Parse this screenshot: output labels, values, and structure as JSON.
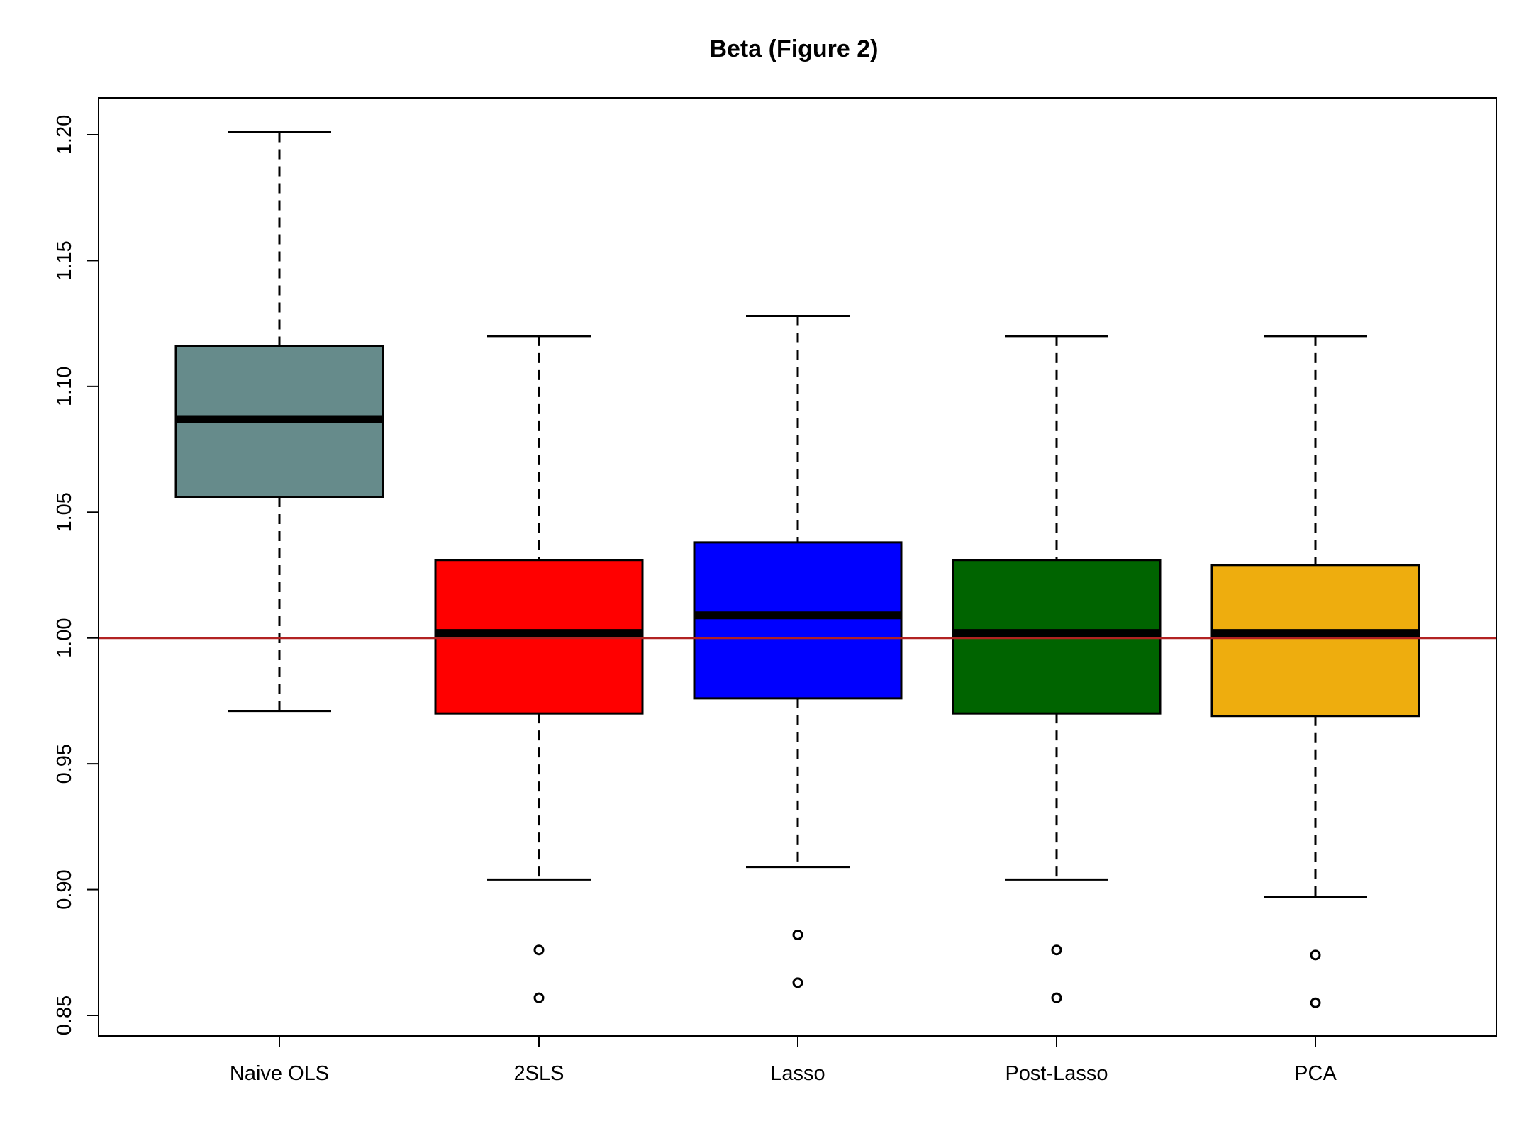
{
  "chart_data": {
    "type": "boxplot",
    "title": "Beta  (Figure 2)",
    "xlabel": "",
    "ylabel": "",
    "ylim": [
      0.835,
      1.21
    ],
    "yticks": [
      "0.85",
      "0.90",
      "0.95",
      "1.00",
      "1.05",
      "1.10",
      "1.15",
      "1.20"
    ],
    "reference_line": {
      "y": 1.0,
      "color": "#b22222"
    },
    "grid": false,
    "legend": "none",
    "series": [
      {
        "category": "Naive OLS",
        "color": "#668b8b",
        "whisker_low": 0.971,
        "q1": 1.056,
        "median": 1.087,
        "q3": 1.116,
        "whisker_high": 1.201,
        "outliers": []
      },
      {
        "category": "2SLS",
        "color": "#ff0000",
        "whisker_low": 0.904,
        "q1": 0.97,
        "median": 1.002,
        "q3": 1.031,
        "whisker_high": 1.12,
        "outliers": [
          0.876,
          0.857
        ]
      },
      {
        "category": "Lasso",
        "color": "#0000ff",
        "whisker_low": 0.909,
        "q1": 0.976,
        "median": 1.009,
        "q3": 1.038,
        "whisker_high": 1.128,
        "outliers": [
          0.882,
          0.863
        ]
      },
      {
        "category": "Post-Lasso",
        "color": "#006400",
        "whisker_low": 0.904,
        "q1": 0.97,
        "median": 1.002,
        "q3": 1.031,
        "whisker_high": 1.12,
        "outliers": [
          0.876,
          0.857
        ]
      },
      {
        "category": "PCA",
        "color": "#eead0e",
        "whisker_low": 0.897,
        "q1": 0.969,
        "median": 1.002,
        "q3": 1.029,
        "whisker_high": 1.12,
        "outliers": [
          0.874,
          0.855
        ]
      }
    ]
  }
}
